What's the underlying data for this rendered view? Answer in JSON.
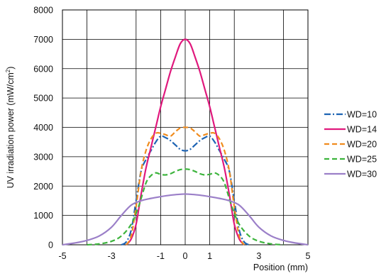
{
  "chart_data": {
    "type": "line",
    "xlabel": "Position (mm)",
    "ylabel_main": "UV irradiation power (mW/cm",
    "ylabel_sup": "2",
    "ylabel_close": ")",
    "xlim": [
      -5,
      5
    ],
    "ylim": [
      0,
      8000
    ],
    "x_ticks": [
      -5,
      -3,
      -1,
      0,
      1,
      3,
      5
    ],
    "x_tick_labels": [
      "-5",
      "-3",
      "-1",
      "0",
      "1",
      "3",
      "5"
    ],
    "x_grid": [
      -4,
      -2,
      -1,
      0,
      1,
      2,
      4
    ],
    "y_ticks": [
      0,
      1000,
      2000,
      3000,
      4000,
      5000,
      6000,
      7000,
      8000
    ],
    "y_tick_labels": [
      "0",
      "1000",
      "2000",
      "3000",
      "4000",
      "5000",
      "6000",
      "7000",
      "8000"
    ],
    "grid": true,
    "legend_position": "right",
    "series": [
      {
        "name": "WD=10",
        "color": "#1e64b4",
        "dash": "dashdot",
        "x": [
          -2.6,
          -2.4,
          -2.2,
          -2.0,
          -1.8,
          -1.6,
          -1.4,
          -1.2,
          -1.0,
          -0.8,
          -0.6,
          -0.4,
          -0.2,
          0.0,
          0.2,
          0.4,
          0.6,
          0.8,
          1.0,
          1.2,
          1.4,
          1.6,
          1.8,
          2.0,
          2.2,
          2.4,
          2.6
        ],
        "y": [
          0,
          100,
          500,
          1500,
          2500,
          2900,
          3200,
          3500,
          3700,
          3650,
          3550,
          3400,
          3250,
          3200,
          3250,
          3400,
          3550,
          3650,
          3700,
          3500,
          3200,
          2900,
          2500,
          1500,
          500,
          100,
          0
        ]
      },
      {
        "name": "WD=14",
        "color": "#e0197d",
        "dash": "solid",
        "x": [
          -2.4,
          -2.2,
          -2.0,
          -1.8,
          -1.6,
          -1.4,
          -1.2,
          -1.0,
          -0.8,
          -0.6,
          -0.4,
          -0.2,
          0.0,
          0.2,
          0.4,
          0.6,
          0.8,
          1.0,
          1.2,
          1.4,
          1.6,
          1.8,
          2.0,
          2.2,
          2.4
        ],
        "y": [
          0,
          200,
          700,
          1700,
          2600,
          3300,
          4000,
          4700,
          5300,
          5900,
          6400,
          6850,
          7000,
          6850,
          6400,
          5900,
          5300,
          4700,
          4000,
          3300,
          2600,
          1700,
          700,
          200,
          0
        ]
      },
      {
        "name": "WD=20",
        "color": "#f08c1e",
        "dash": "dash",
        "x": [
          -2.4,
          -2.2,
          -2.0,
          -1.8,
          -1.6,
          -1.4,
          -1.2,
          -1.0,
          -0.8,
          -0.6,
          -0.4,
          -0.2,
          0.0,
          0.2,
          0.4,
          0.6,
          0.8,
          1.0,
          1.2,
          1.4,
          1.6,
          1.8,
          2.0,
          2.2,
          2.4
        ],
        "y": [
          0,
          300,
          1300,
          2500,
          3200,
          3600,
          3800,
          3800,
          3750,
          3700,
          3850,
          3980,
          4000,
          3980,
          3850,
          3700,
          3750,
          3800,
          3800,
          3600,
          3200,
          2500,
          1300,
          300,
          0
        ]
      },
      {
        "name": "WD=25",
        "color": "#3cb43c",
        "dash": "dash",
        "x": [
          -4.0,
          -3.5,
          -3.0,
          -2.6,
          -2.2,
          -1.9,
          -1.6,
          -1.4,
          -1.2,
          -1.0,
          -0.8,
          -0.6,
          -0.4,
          -0.2,
          0.0,
          0.2,
          0.4,
          0.6,
          0.8,
          1.0,
          1.2,
          1.4,
          1.6,
          1.9,
          2.2,
          2.6,
          3.0,
          3.5,
          4.0
        ],
        "y": [
          0,
          30,
          120,
          300,
          700,
          1300,
          2100,
          2350,
          2450,
          2400,
          2380,
          2420,
          2500,
          2560,
          2580,
          2560,
          2500,
          2420,
          2380,
          2400,
          2450,
          2350,
          2100,
          1300,
          700,
          300,
          120,
          30,
          0
        ]
      },
      {
        "name": "WD=30",
        "color": "#9b7fc8",
        "dash": "solid",
        "x": [
          -5.0,
          -4.5,
          -4.0,
          -3.5,
          -3.0,
          -2.6,
          -2.2,
          -1.8,
          -1.4,
          -1.0,
          -0.6,
          -0.2,
          0.0,
          0.2,
          0.6,
          1.0,
          1.4,
          1.8,
          2.2,
          2.6,
          3.0,
          3.5,
          4.0,
          4.5,
          5.0
        ],
        "y": [
          0,
          60,
          150,
          300,
          600,
          1000,
          1350,
          1500,
          1580,
          1640,
          1690,
          1720,
          1730,
          1720,
          1690,
          1640,
          1580,
          1500,
          1350,
          1000,
          600,
          300,
          150,
          60,
          0
        ]
      }
    ]
  }
}
